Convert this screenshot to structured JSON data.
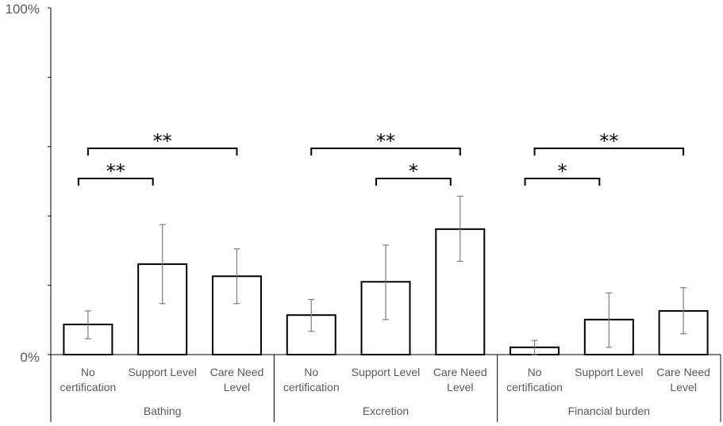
{
  "chart_data": {
    "type": "bar",
    "title": "",
    "xlabel": "",
    "ylabel": "",
    "y_tick_labels": [
      "0%",
      "100%"
    ],
    "ylim": [
      0,
      100
    ],
    "grid": false,
    "legend": "none",
    "groups": [
      {
        "name": "Bathing",
        "categories": [
          "No certification",
          "Support Level",
          "Care Need Level"
        ],
        "values": [
          8.7,
          26.1,
          22.6
        ],
        "error_low": [
          4.6,
          14.7,
          14.7
        ],
        "error_high": [
          12.6,
          37.5,
          30.5
        ],
        "significance": [
          {
            "from": 0,
            "to": 1,
            "label": "**"
          },
          {
            "from": 0,
            "to": 2,
            "label": "**"
          }
        ]
      },
      {
        "name": "Excretion",
        "categories": [
          "No certification",
          "Support Level",
          "Care Need Level"
        ],
        "values": [
          11.4,
          21.0,
          36.2
        ],
        "error_low": [
          6.7,
          10.1,
          26.9
        ],
        "error_high": [
          15.9,
          31.6,
          45.7
        ],
        "significance": [
          {
            "from": 1,
            "to": 2,
            "label": "*"
          },
          {
            "from": 0,
            "to": 2,
            "label": "**"
          }
        ]
      },
      {
        "name": "Financial burden",
        "categories": [
          "No certification",
          "Support Level",
          "Care Need Level"
        ],
        "values": [
          2.1,
          10.1,
          12.6
        ],
        "error_low": [
          0,
          2.1,
          6.0
        ],
        "error_high": [
          4.1,
          17.8,
          19.3
        ],
        "significance": [
          {
            "from": 0,
            "to": 1,
            "label": "*"
          },
          {
            "from": 0,
            "to": 2,
            "label": "**"
          }
        ]
      }
    ]
  }
}
